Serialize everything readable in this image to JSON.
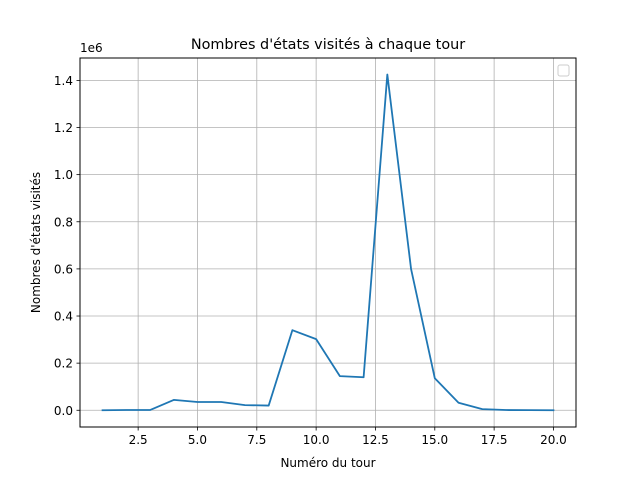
{
  "chart_data": {
    "type": "line",
    "title": "Nombres d'états visités à chaque tour",
    "xlabel": "Numéro du tour",
    "ylabel": "Nombres d'états visités",
    "y_offset_label": "1e6",
    "xlim": [
      0.05,
      20.95
    ],
    "ylim": [
      -71000,
      1495000
    ],
    "x_ticks": [
      2.5,
      5.0,
      7.5,
      10.0,
      12.5,
      15.0,
      17.5,
      20.0
    ],
    "x_tick_labels": [
      "2.5",
      "5.0",
      "7.5",
      "10.0",
      "12.5",
      "15.0",
      "17.5",
      "20.0"
    ],
    "y_ticks": [
      0,
      200000,
      400000,
      600000,
      800000,
      1000000,
      1200000,
      1400000
    ],
    "y_tick_labels": [
      "0.0",
      "0.2",
      "0.4",
      "0.6",
      "0.8",
      "1.0",
      "1.2",
      "1.4"
    ],
    "grid": true,
    "legend": "top-right (empty)",
    "series": [
      {
        "color": "#1f77b4",
        "x": [
          1,
          2,
          3,
          4,
          5,
          6,
          7,
          8,
          9,
          10,
          11,
          12,
          13,
          14,
          15,
          16,
          17,
          18,
          19,
          20
        ],
        "values": [
          0,
          1000,
          1000,
          44000,
          35000,
          35000,
          22000,
          20000,
          340000,
          302000,
          145000,
          140000,
          1425000,
          600000,
          136000,
          32000,
          5000,
          1000,
          500,
          0
        ]
      }
    ]
  }
}
